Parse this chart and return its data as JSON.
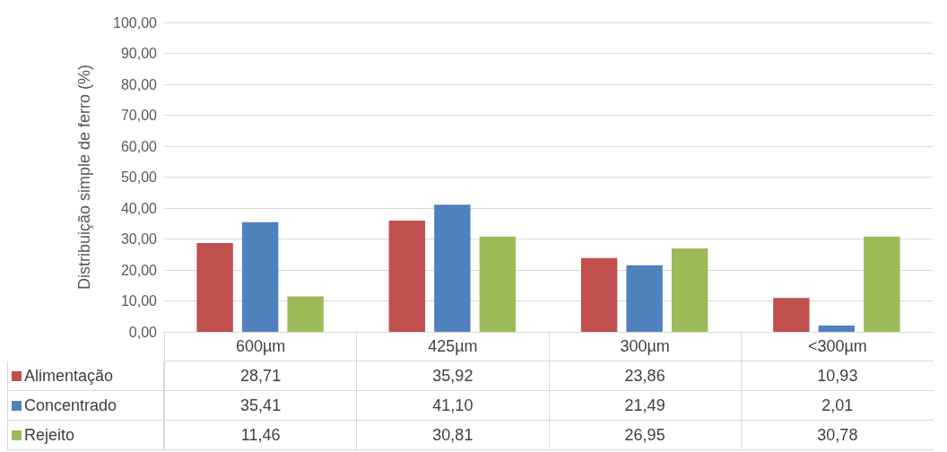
{
  "chart_data": {
    "type": "bar",
    "ylabel": "Distribuição simple de ferro (%)",
    "categories": [
      "600µm",
      "425µm",
      "300µm",
      "<300µm"
    ],
    "series": [
      {
        "name": "Alimentação",
        "color": "#c0504d",
        "values": [
          28.71,
          35.92,
          23.86,
          10.93
        ],
        "value_labels": [
          "28,71",
          "35,92",
          "23,86",
          "10,93"
        ]
      },
      {
        "name": "Concentrado",
        "color": "#4f81bd",
        "values": [
          35.41,
          41.1,
          21.49,
          2.01
        ],
        "value_labels": [
          "35,41",
          "41,10",
          "21,49",
          "2,01"
        ]
      },
      {
        "name": "Rejeito",
        "color": "#9bbb59",
        "values": [
          11.46,
          30.81,
          26.95,
          30.78
        ],
        "value_labels": [
          "11,46",
          "30,81",
          "26,95",
          "30,78"
        ]
      }
    ],
    "ylim": [
      0,
      100
    ],
    "yticks": [
      {
        "value": 0,
        "label": "0,00"
      },
      {
        "value": 10,
        "label": "10,00"
      },
      {
        "value": 20,
        "label": "20,00"
      },
      {
        "value": 30,
        "label": "30,00"
      },
      {
        "value": 40,
        "label": "40,00"
      },
      {
        "value": 50,
        "label": "50,00"
      },
      {
        "value": 60,
        "label": "60,00"
      },
      {
        "value": 70,
        "label": "70,00"
      },
      {
        "value": 80,
        "label": "80,00"
      },
      {
        "value": 90,
        "label": "90,00"
      },
      {
        "value": 100,
        "label": "100,00"
      }
    ],
    "grid": "y",
    "legend": "bottom left"
  }
}
